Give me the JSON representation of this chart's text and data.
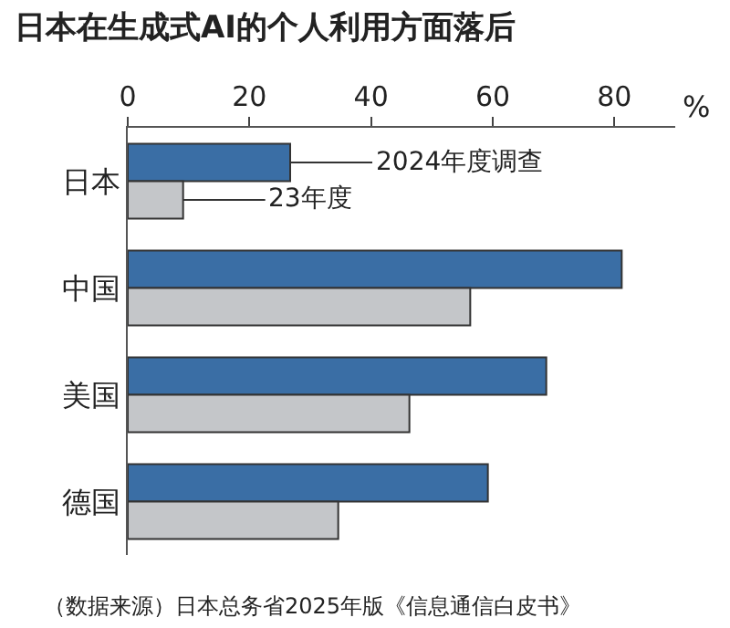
{
  "chart_data": {
    "type": "bar",
    "orientation": "horizontal",
    "title": "日本在生成式AI的个人利用方面落后",
    "xlabel": "%",
    "categories": [
      "日本",
      "中国",
      "美国",
      "德国"
    ],
    "series": [
      {
        "name": "2024年度调查",
        "color": "#3a6ea5",
        "values": [
          26.7,
          81.2,
          68.8,
          59.2
        ]
      },
      {
        "name": "23年度",
        "color": "#c4c6c9",
        "values": [
          9.1,
          56.3,
          46.3,
          34.6
        ]
      }
    ],
    "xlim": [
      0,
      90
    ],
    "xticks": [
      0,
      20,
      40,
      60,
      80
    ],
    "legend": "top",
    "annotations": [
      "（数据来源）日本总务省2025年版《信息通信白皮书》"
    ]
  }
}
